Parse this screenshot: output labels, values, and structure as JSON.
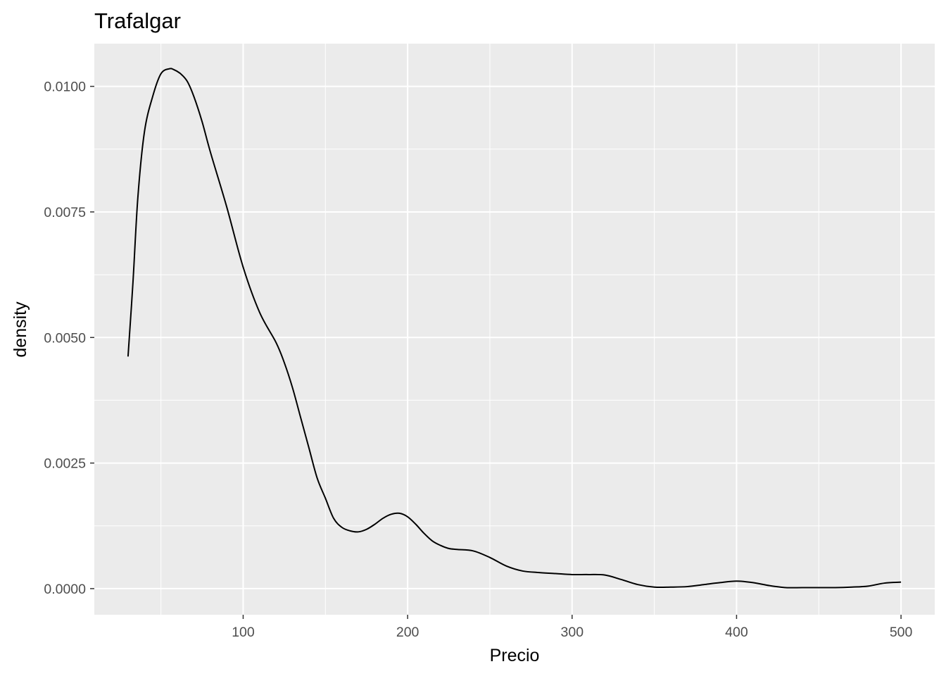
{
  "chart_data": {
    "type": "line",
    "title": "Trafalgar",
    "xlabel": "Precio",
    "ylabel": "density",
    "xlim": [
      9.5,
      520.5
    ],
    "ylim": [
      -0.00052,
      0.01085
    ],
    "x_ticks": [
      100,
      200,
      300,
      400,
      500
    ],
    "x_tick_labels": [
      "100",
      "200",
      "300",
      "400",
      "500"
    ],
    "y_ticks": [
      0.0,
      0.0025,
      0.005,
      0.0075,
      0.01
    ],
    "y_tick_labels": [
      "0.0000",
      "0.0025",
      "0.0050",
      "0.0075",
      "0.0100"
    ],
    "x_minor_grid": [
      50,
      150,
      250,
      350,
      450
    ],
    "y_minor_grid": [
      0.00125,
      0.00375,
      0.00625,
      0.00875,
      0.01125
    ],
    "grid": true,
    "background": "#ebebeb",
    "grid_color": "#ffffff",
    "line_color": "#000000",
    "series": [
      {
        "x": [
          30,
          33,
          36,
          40,
          45,
          50,
          55,
          58,
          62,
          66,
          70,
          75,
          80,
          90,
          100,
          110,
          120,
          125,
          130,
          135,
          140,
          145,
          150,
          155,
          160,
          165,
          170,
          175,
          180,
          185,
          190,
          195,
          200,
          205,
          210,
          215,
          220,
          225,
          230,
          240,
          250,
          260,
          270,
          280,
          290,
          300,
          310,
          320,
          330,
          340,
          350,
          360,
          370,
          380,
          390,
          400,
          410,
          420,
          430,
          440,
          450,
          460,
          470,
          480,
          490,
          500
        ],
        "y": [
          0.00462,
          0.0061,
          0.0078,
          0.0091,
          0.0098,
          0.01025,
          0.01035,
          0.01033,
          0.01025,
          0.0101,
          0.0098,
          0.0093,
          0.0087,
          0.0076,
          0.0064,
          0.0055,
          0.0049,
          0.0045,
          0.004,
          0.0034,
          0.0028,
          0.0022,
          0.0018,
          0.0014,
          0.00122,
          0.00115,
          0.00113,
          0.00118,
          0.00128,
          0.0014,
          0.00148,
          0.0015,
          0.00143,
          0.00128,
          0.0011,
          0.00095,
          0.00086,
          0.0008,
          0.00078,
          0.00075,
          0.00062,
          0.00045,
          0.00035,
          0.00032,
          0.0003,
          0.00028,
          0.00028,
          0.00027,
          0.00018,
          8e-05,
          3e-05,
          3e-05,
          4e-05,
          8e-05,
          0.00012,
          0.00015,
          0.00012,
          6e-05,
          2e-05,
          2e-05,
          2e-05,
          2e-05,
          3e-05,
          5e-05,
          0.00011,
          0.00013
        ]
      }
    ]
  }
}
